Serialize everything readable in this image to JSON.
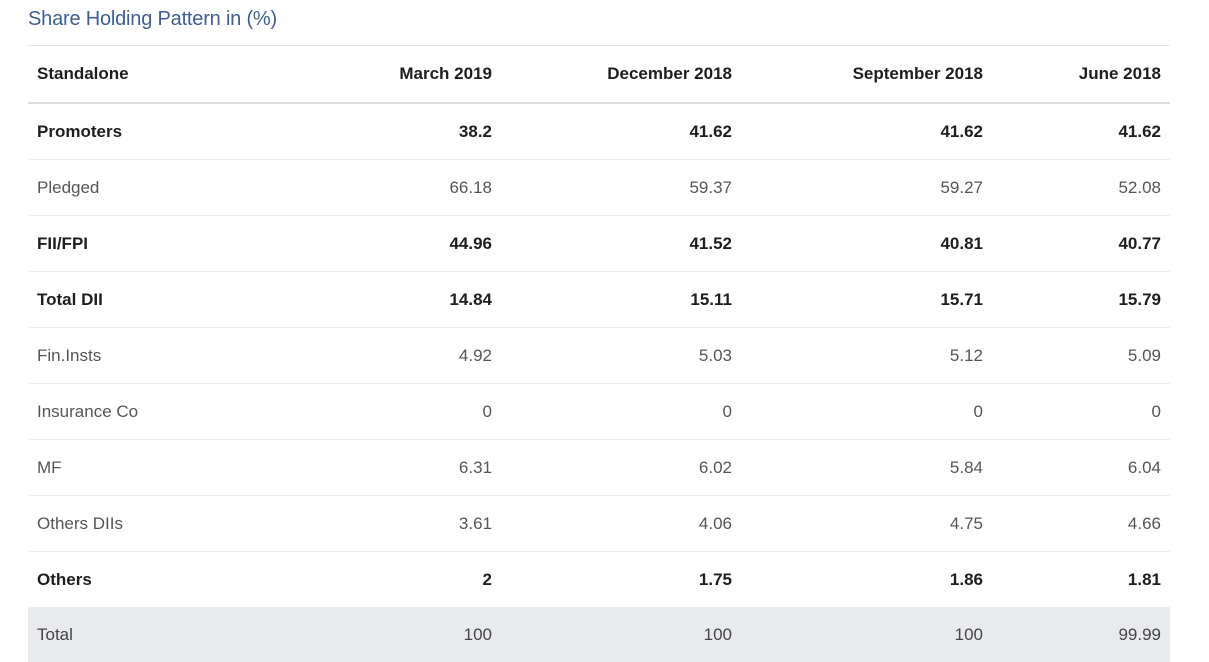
{
  "title": "Share Holding Pattern in (%)",
  "headers": [
    "Standalone",
    "March 2019",
    "December 2018",
    "September 2018",
    "June 2018"
  ],
  "rows": [
    {
      "label": "Promoters",
      "values": [
        "38.2",
        "41.62",
        "41.62",
        "41.62"
      ]
    },
    {
      "label": "Pledged",
      "values": [
        "66.18",
        "59.37",
        "59.27",
        "52.08"
      ]
    },
    {
      "label": "FII/FPI",
      "values": [
        "44.96",
        "41.52",
        "40.81",
        "40.77"
      ]
    },
    {
      "label": "Total DII",
      "values": [
        "14.84",
        "15.11",
        "15.71",
        "15.79"
      ]
    },
    {
      "label": "Fin.Insts",
      "values": [
        "4.92",
        "5.03",
        "5.12",
        "5.09"
      ]
    },
    {
      "label": "Insurance Co",
      "values": [
        "0",
        "0",
        "0",
        "0"
      ]
    },
    {
      "label": "MF",
      "values": [
        "6.31",
        "6.02",
        "5.84",
        "6.04"
      ]
    },
    {
      "label": "Others DIIs",
      "values": [
        "3.61",
        "4.06",
        "4.75",
        "4.66"
      ]
    },
    {
      "label": "Others",
      "values": [
        "2",
        "1.75",
        "1.86",
        "1.81"
      ]
    },
    {
      "label": "Total",
      "values": [
        "100",
        "100",
        "100",
        "99.99"
      ]
    }
  ]
}
